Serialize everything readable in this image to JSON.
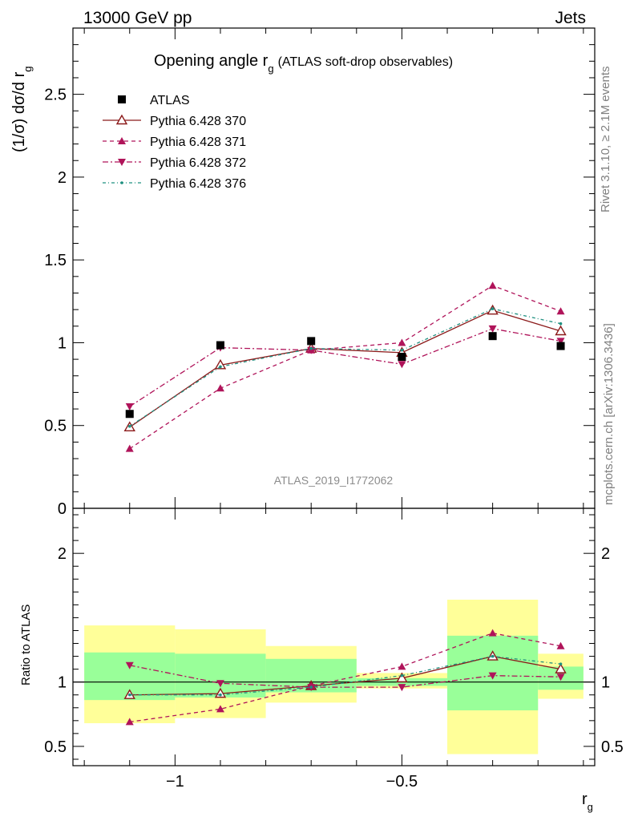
{
  "header": {
    "left": "13000 GeV pp",
    "right": "Jets"
  },
  "side_labels": {
    "rivet": "Rivet 3.1.10, ≥ 2.1M events",
    "mcplots": "mcplots.cern.ch [arXiv:1306.3436]"
  },
  "watermark": "ATLAS_2019_I1772062",
  "chart_data": [
    {
      "type": "line",
      "title": "Opening angle r",
      "title_sub": "g",
      "title_suffix": "(ATLAS soft-drop observables)",
      "ylabel": "(1/σ) dσ/d r",
      "ylabel_sub": "g",
      "xlabel": "r",
      "xlabel_sub": "g",
      "xlim": [
        -1.225,
        -0.075
      ],
      "ylim": [
        0,
        2.9
      ],
      "yticks": [
        {
          "v": 0,
          "label": "0"
        },
        {
          "v": 0.5,
          "label": "0.5"
        },
        {
          "v": 1,
          "label": "1"
        },
        {
          "v": 1.5,
          "label": "1.5"
        },
        {
          "v": 2,
          "label": "2"
        },
        {
          "v": 2.5,
          "label": "2.5"
        }
      ],
      "bins": [
        [
          -1.2,
          -1.0
        ],
        [
          -1.0,
          -0.8
        ],
        [
          -0.8,
          -0.6
        ],
        [
          -0.6,
          -0.4
        ],
        [
          -0.4,
          -0.2
        ],
        [
          -0.2,
          -0.1
        ]
      ],
      "x": [
        -1.1,
        -0.9,
        -0.7,
        -0.5,
        -0.3,
        -0.15
      ],
      "data": {
        "name": "ATLAS",
        "values": [
          0.57,
          0.985,
          1.01,
          0.915,
          1.04,
          0.98
        ]
      },
      "series": [
        {
          "name": "Pythia 6.428 370",
          "color": "#8b1a1a",
          "dash": "",
          "marker": "tri-up-open",
          "values": [
            0.49,
            0.865,
            0.965,
            0.94,
            1.195,
            1.07
          ]
        },
        {
          "name": "Pythia 6.428 371",
          "color": "#b0145a",
          "dash": "5,4",
          "marker": "tri-up",
          "values": [
            0.36,
            0.725,
            0.955,
            1.0,
            1.345,
            1.19
          ]
        },
        {
          "name": "Pythia 6.428 372",
          "color": "#b0145a",
          "dash": "7,3,2,3",
          "marker": "tri-down",
          "values": [
            0.615,
            0.97,
            0.955,
            0.87,
            1.085,
            1.01
          ]
        },
        {
          "name": "Pythia 6.428 376",
          "color": "#1f9080",
          "dash": "4,3,1,3",
          "marker": "dot",
          "values": [
            0.495,
            0.855,
            0.965,
            0.955,
            1.205,
            1.115
          ]
        }
      ],
      "legend": "top-left"
    },
    {
      "type": "line",
      "ylabel": "Ratio to ATLAS",
      "ylim": [
        0.35,
        2.35
      ],
      "yticks": [
        {
          "v": 0.5,
          "label": "0.5"
        },
        {
          "v": 1,
          "label": "1"
        },
        {
          "v": 2,
          "label": "2"
        }
      ],
      "xticks": [
        {
          "v": -1,
          "label": "−1"
        },
        {
          "v": -0.5,
          "label": "−0.5"
        }
      ],
      "bands": [
        {
          "x0": -1.2,
          "x1": -1.0,
          "g": [
            0.86,
            1.23
          ],
          "y": [
            0.68,
            1.44
          ]
        },
        {
          "x0": -1.0,
          "x1": -0.8,
          "g": [
            0.88,
            1.22
          ],
          "y": [
            0.72,
            1.41
          ]
        },
        {
          "x0": -0.8,
          "x1": -0.6,
          "g": [
            0.92,
            1.18
          ],
          "y": [
            0.84,
            1.28
          ]
        },
        {
          "x0": -0.6,
          "x1": -0.4,
          "g": [
            0.97,
            1.03
          ],
          "y": [
            0.95,
            1.07
          ]
        },
        {
          "x0": -0.4,
          "x1": -0.2,
          "g": [
            0.78,
            1.36
          ],
          "y": [
            0.44,
            1.64
          ]
        },
        {
          "x0": -0.2,
          "x1": -0.1,
          "g": [
            0.94,
            1.12
          ],
          "y": [
            0.87,
            1.22
          ]
        }
      ],
      "x": [
        -1.1,
        -0.9,
        -0.7,
        -0.5,
        -0.3,
        -0.15
      ],
      "series": [
        {
          "name": "Pythia 6.428 370",
          "values": [
            0.9,
            0.91,
            0.97,
            1.03,
            1.2,
            1.1
          ]
        },
        {
          "name": "Pythia 6.428 371",
          "values": [
            0.69,
            0.79,
            0.97,
            1.12,
            1.38,
            1.28
          ]
        },
        {
          "name": "Pythia 6.428 372",
          "values": [
            1.13,
            0.99,
            0.96,
            0.96,
            1.05,
            1.04
          ]
        },
        {
          "name": "Pythia 6.428 376",
          "values": [
            0.9,
            0.9,
            0.96,
            1.05,
            1.2,
            1.14
          ]
        }
      ]
    }
  ]
}
